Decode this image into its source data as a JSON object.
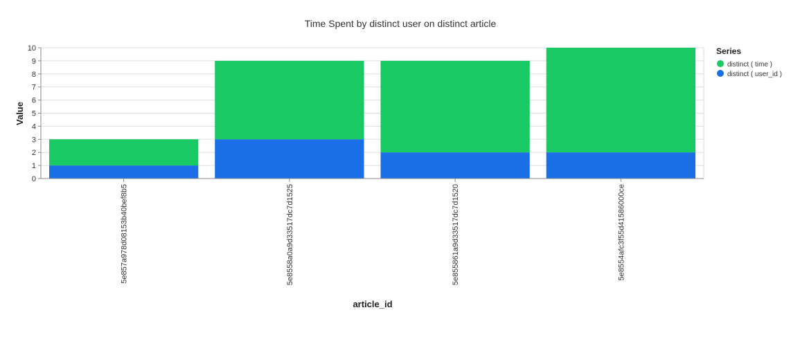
{
  "chart_data": {
    "type": "bar",
    "stacked": true,
    "title": "Time Spent by distinct user on distinct article",
    "xlabel": "article_id",
    "ylabel": "Value",
    "ylim": [
      0,
      10
    ],
    "yticks": [
      0,
      1,
      2,
      3,
      4,
      5,
      6,
      7,
      8,
      9,
      10
    ],
    "grid": true,
    "legend": {
      "title": "Series",
      "position": "right"
    },
    "categories": [
      "5e857a978d08153b40bef8b5",
      "5e8558a0a9d33517dc7d1525",
      "5e855861a9d33517dc7d1520",
      "5e8554afc3f55d41586000ce"
    ],
    "series": [
      {
        "name": "distinct ( time )",
        "color": "#18c964",
        "values": [
          2,
          6,
          7,
          8
        ]
      },
      {
        "name": "distinct ( user_id )",
        "color": "#1a6fe6",
        "values": [
          1,
          3,
          2,
          2
        ]
      }
    ]
  }
}
